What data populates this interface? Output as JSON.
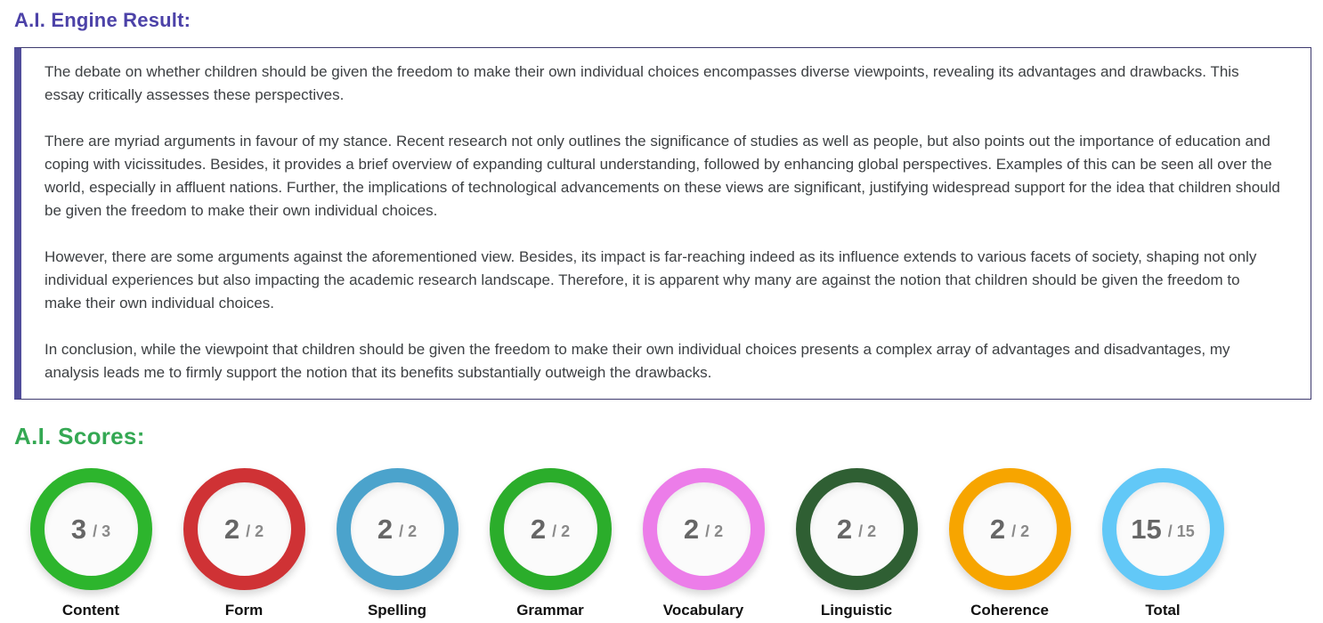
{
  "engine_result": {
    "heading": "A.I. Engine Result:",
    "paragraphs": [
      "The debate on whether children should be given the freedom to make their own individual choices encompasses diverse viewpoints, revealing its advantages and drawbacks. This essay critically assesses these perspectives.",
      "There are myriad arguments in favour of my stance. Recent research not only outlines the significance of studies as well as people, but also points out the importance of education and coping with vicissitudes. Besides, it provides a brief overview of expanding cultural understanding, followed by enhancing global perspectives. Examples of this can be seen all over the world, especially in affluent nations. Further, the implications of technological advancements on these views are significant, justifying widespread support for the idea that children should be given the freedom to make their own individual choices.",
      "However, there are some arguments against the aforementioned view. Besides, its impact is far-reaching indeed as its influence extends to various facets of society, shaping not only individual experiences but also impacting the academic research landscape. Therefore, it is apparent why many are against the notion that children should be given the freedom to make their own individual choices.",
      "In conclusion, while the viewpoint that children should be given the freedom to make their own individual choices presents a complex array of advantages and disadvantages, my analysis leads me to firmly support the notion that its benefits substantially outweigh the drawbacks."
    ]
  },
  "scores": {
    "heading": "A.I. Scores:",
    "items": [
      {
        "label": "Content",
        "score": "3",
        "max": "/ 3",
        "color": "#2db52d"
      },
      {
        "label": "Form",
        "score": "2",
        "max": "/ 2",
        "color": "#cf3235"
      },
      {
        "label": "Spelling",
        "score": "2",
        "max": "/ 2",
        "color": "#4ba3cc"
      },
      {
        "label": "Grammar",
        "score": "2",
        "max": "/ 2",
        "color": "#2bad2b"
      },
      {
        "label": "Vocabulary",
        "score": "2",
        "max": "/ 2",
        "color": "#ec7de9"
      },
      {
        "label": "Linguistic",
        "score": "2",
        "max": "/ 2",
        "color": "#2f5f33"
      },
      {
        "label": "Coherence",
        "score": "2",
        "max": "/ 2",
        "color": "#f7a500"
      },
      {
        "label": "Total",
        "score": "15",
        "max": "/ 15",
        "color": "#62c8f7"
      }
    ]
  },
  "colors": {
    "engine_heading": "#4c42a8",
    "scores_heading": "#34a853",
    "box_border": "#3e3a6e",
    "box_accent_left": "#514d9b",
    "essay_text": "#3d4043"
  }
}
